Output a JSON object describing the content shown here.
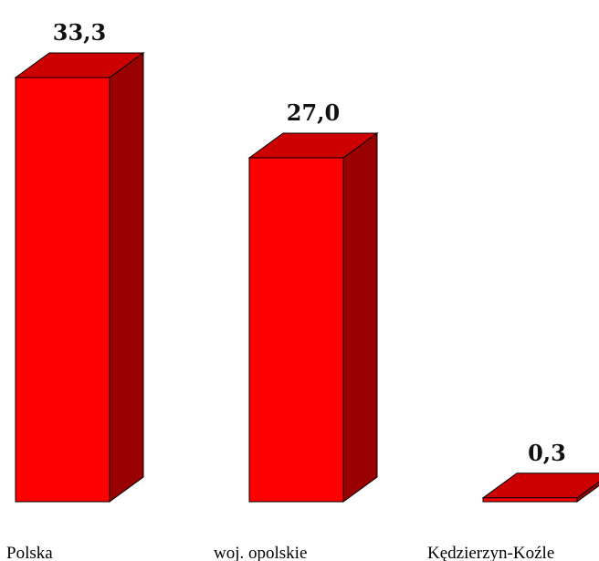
{
  "chart_data": {
    "type": "bar",
    "categories": [
      "Polska",
      "woj. opolskie",
      "Kędzierzyn-Koźle"
    ],
    "values": [
      33.3,
      27.0,
      0.3
    ],
    "value_labels": [
      "33,3",
      "27,0",
      "0,3"
    ],
    "title": "",
    "xlabel": "",
    "ylabel": "",
    "ylim": [
      0,
      33.3
    ],
    "grid": false,
    "legend": "none",
    "style": "3d-column",
    "colors": {
      "front": "#ff0000",
      "top": "#cc0000",
      "side": "#990000",
      "outline": "#000000"
    }
  }
}
